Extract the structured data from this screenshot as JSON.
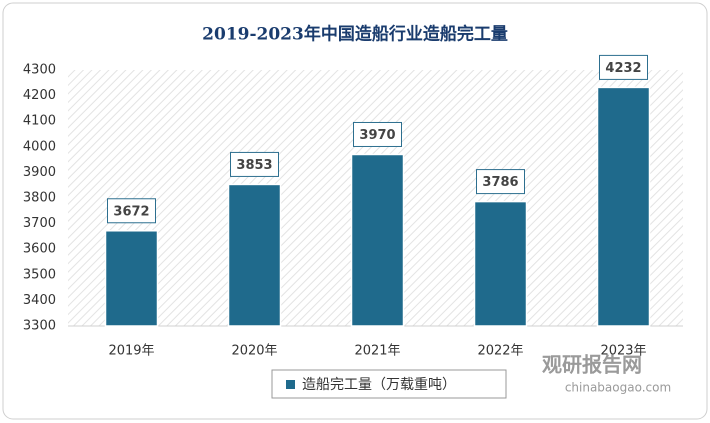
{
  "chart_data": {
    "type": "bar",
    "title": "2019-2023年中国造船行业造船完工量",
    "categories": [
      "2019年",
      "2020年",
      "2021年",
      "2022年",
      "2023年"
    ],
    "series": [
      {
        "name": "造船完工量（万载重吨）",
        "color": "#1f6a8c",
        "values": [
          3672,
          3853,
          3970,
          3786,
          4232
        ]
      }
    ],
    "ylim": [
      3300,
      4300
    ],
    "yticks": [
      3300,
      3400,
      3500,
      3600,
      3700,
      3800,
      3900,
      4000,
      4100,
      4200,
      4300
    ],
    "grid": false,
    "legend": "bottom",
    "annotations": [
      "观研报告网",
      "chinabaogao.com"
    ]
  }
}
